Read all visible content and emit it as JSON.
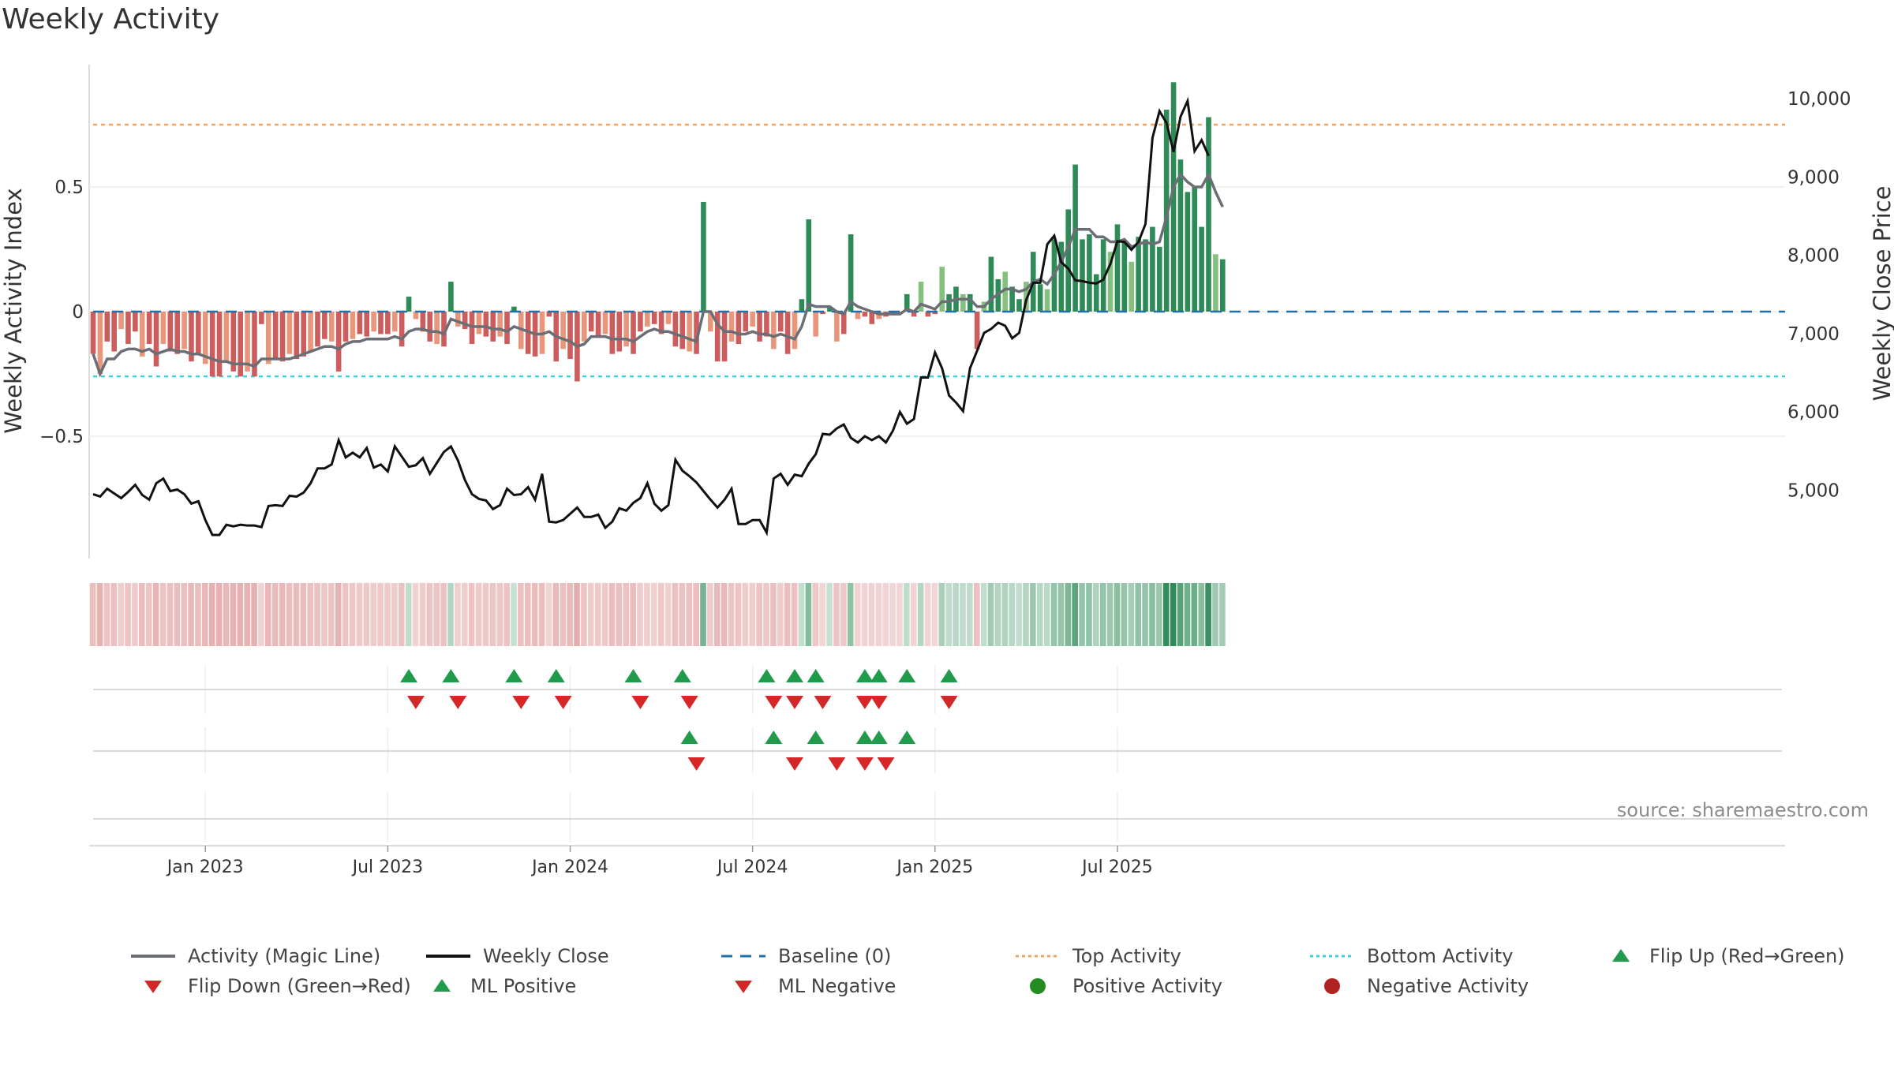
{
  "title": "Weekly Activity",
  "source": "source: sharemaestro.com",
  "chart_data": {
    "type": "bar",
    "title": "Weekly Activity",
    "ylabel_left": "Weekly Activity Index",
    "ylabel_right": "Weekly Close Price",
    "ylim_left": [
      -1.0,
      1.0
    ],
    "ylim_right": [
      4000,
      10500
    ],
    "left_ticks": [
      {
        "v": 0.5,
        "label": "0.5"
      },
      {
        "v": 0,
        "label": "0"
      },
      {
        "v": -0.5,
        "label": "−0.5"
      }
    ],
    "right_ticks": [
      {
        "v": 10000,
        "label": "10,000"
      },
      {
        "v": 9000,
        "label": "9,000"
      },
      {
        "v": 8000,
        "label": "8,000"
      },
      {
        "v": 7000,
        "label": "7,000"
      },
      {
        "v": 6000,
        "label": "6,000"
      },
      {
        "v": 5000,
        "label": "5,000"
      }
    ],
    "x_tick_labels": [
      {
        "week": 16,
        "label": "Jan 2023"
      },
      {
        "week": 42,
        "label": "Jul 2023"
      },
      {
        "week": 68,
        "label": "Jan 2024"
      },
      {
        "week": 94,
        "label": "Jul 2024"
      },
      {
        "week": 120,
        "label": "Jan 2025"
      },
      {
        "week": 146,
        "label": "Jul 2025"
      }
    ],
    "top_activity": 0.75,
    "bottom_activity": -0.26,
    "baseline": 0,
    "activity": [
      -0.17,
      -0.25,
      -0.12,
      -0.16,
      -0.07,
      -0.13,
      -0.08,
      -0.18,
      -0.13,
      -0.22,
      -0.13,
      -0.16,
      -0.17,
      -0.15,
      -0.2,
      -0.17,
      -0.21,
      -0.26,
      -0.26,
      -0.2,
      -0.24,
      -0.26,
      -0.24,
      -0.26,
      -0.05,
      -0.21,
      -0.19,
      -0.2,
      -0.17,
      -0.19,
      -0.18,
      -0.16,
      -0.14,
      -0.11,
      -0.12,
      -0.24,
      -0.12,
      -0.11,
      -0.09,
      -0.1,
      -0.08,
      -0.09,
      -0.09,
      -0.08,
      -0.14,
      0.06,
      -0.03,
      -0.08,
      -0.12,
      -0.13,
      -0.14,
      0.12,
      -0.06,
      -0.07,
      -0.13,
      -0.09,
      -0.1,
      -0.12,
      -0.1,
      -0.13,
      0.02,
      -0.15,
      -0.17,
      -0.18,
      -0.17,
      -0.02,
      -0.2,
      -0.15,
      -0.19,
      -0.28,
      -0.12,
      -0.08,
      -0.1,
      -0.09,
      -0.17,
      -0.16,
      -0.14,
      -0.17,
      -0.08,
      -0.06,
      -0.05,
      -0.09,
      -0.05,
      -0.14,
      -0.15,
      -0.16,
      -0.17,
      0.44,
      -0.08,
      -0.2,
      -0.2,
      -0.12,
      -0.13,
      -0.08,
      -0.06,
      -0.12,
      -0.1,
      -0.15,
      -0.08,
      -0.17,
      -0.15,
      0.05,
      0.37,
      -0.1,
      -0.01,
      0.02,
      -0.12,
      -0.09,
      0.31,
      -0.03,
      -0.02,
      -0.05,
      -0.03,
      -0.02,
      -0.01,
      -0.01,
      0.07,
      -0.02,
      0.12,
      -0.02,
      -0.01,
      0.18,
      0.07,
      0.1,
      0.07,
      0.07,
      -0.15,
      0.04,
      0.22,
      0.13,
      0.16,
      0.1,
      0.05,
      0.12,
      0.24,
      0.11,
      0.09,
      0.29,
      0.28,
      0.41,
      0.59,
      0.29,
      0.31,
      0.15,
      0.29,
      0.24,
      0.35,
      0.28,
      0.2,
      0.3,
      0.29,
      0.34,
      0.26,
      0.81,
      0.92,
      0.61,
      0.48,
      0.5,
      0.34,
      0.78,
      0.23,
      0.21
    ],
    "magic_line": [
      -0.17,
      -0.25,
      -0.19,
      -0.19,
      -0.16,
      -0.15,
      -0.15,
      -0.16,
      -0.15,
      -0.17,
      -0.16,
      -0.15,
      -0.16,
      -0.16,
      -0.17,
      -0.17,
      -0.18,
      -0.19,
      -0.2,
      -0.2,
      -0.21,
      -0.21,
      -0.21,
      -0.22,
      -0.19,
      -0.19,
      -0.19,
      -0.19,
      -0.19,
      -0.18,
      -0.17,
      -0.16,
      -0.15,
      -0.14,
      -0.14,
      -0.15,
      -0.13,
      -0.12,
      -0.12,
      -0.11,
      -0.11,
      -0.11,
      -0.11,
      -0.1,
      -0.11,
      -0.08,
      -0.07,
      -0.07,
      -0.08,
      -0.08,
      -0.09,
      -0.03,
      -0.04,
      -0.05,
      -0.06,
      -0.06,
      -0.06,
      -0.07,
      -0.07,
      -0.08,
      -0.06,
      -0.07,
      -0.08,
      -0.09,
      -0.09,
      -0.08,
      -0.1,
      -0.11,
      -0.12,
      -0.14,
      -0.13,
      -0.1,
      -0.1,
      -0.1,
      -0.11,
      -0.11,
      -0.11,
      -0.12,
      -0.1,
      -0.08,
      -0.07,
      -0.08,
      -0.08,
      -0.09,
      -0.1,
      -0.11,
      -0.12,
      0.0,
      0.0,
      -0.05,
      -0.08,
      -0.08,
      -0.09,
      -0.09,
      -0.08,
      -0.09,
      -0.09,
      -0.1,
      -0.09,
      -0.1,
      -0.11,
      -0.06,
      0.03,
      0.02,
      0.02,
      0.02,
      0.0,
      -0.01,
      0.04,
      0.02,
      0.01,
      0.0,
      -0.01,
      -0.01,
      -0.01,
      -0.01,
      0.01,
      0.0,
      0.03,
      0.02,
      0.01,
      0.04,
      0.04,
      0.05,
      0.05,
      0.05,
      0.02,
      0.02,
      0.05,
      0.07,
      0.09,
      0.09,
      0.08,
      0.09,
      0.12,
      0.13,
      0.11,
      0.15,
      0.2,
      0.26,
      0.33,
      0.33,
      0.33,
      0.3,
      0.3,
      0.28,
      0.28,
      0.29,
      0.26,
      0.27,
      0.28,
      0.27,
      0.28,
      0.38,
      0.5,
      0.55,
      0.52,
      0.5,
      0.5,
      0.55,
      0.48,
      0.42
    ],
    "weekly_close": [
      4950,
      4920,
      5020,
      4960,
      4900,
      4980,
      5070,
      4940,
      4880,
      5090,
      5150,
      4990,
      5010,
      4950,
      4830,
      4860,
      4620,
      4430,
      4430,
      4560,
      4540,
      4560,
      4550,
      4550,
      4530,
      4800,
      4810,
      4800,
      4930,
      4920,
      4970,
      5090,
      5280,
      5280,
      5330,
      5640,
      5420,
      5480,
      5420,
      5540,
      5290,
      5330,
      5240,
      5560,
      5430,
      5300,
      5320,
      5410,
      5210,
      5350,
      5490,
      5560,
      5380,
      5130,
      4950,
      4890,
      4870,
      4760,
      4810,
      5020,
      4940,
      4950,
      5040,
      4880,
      5210,
      4600,
      4590,
      4620,
      4700,
      4780,
      4660,
      4660,
      4690,
      4520,
      4600,
      4770,
      4740,
      4840,
      4900,
      5090,
      4830,
      4740,
      4810,
      5390,
      5250,
      5180,
      5100,
      4990,
      4880,
      4780,
      4880,
      5020,
      4570,
      4570,
      4620,
      4620,
      4460,
      5150,
      5210,
      5070,
      5200,
      5180,
      5340,
      5460,
      5720,
      5710,
      5790,
      5840,
      5670,
      5610,
      5690,
      5640,
      5690,
      5610,
      5760,
      6000,
      5850,
      5910,
      6440,
      6440,
      6760,
      6560,
      6210,
      6120,
      6010,
      6560,
      6780,
      7010,
      7060,
      7140,
      7100,
      6940,
      7010,
      7430,
      7650,
      7650,
      8140,
      8250,
      7910,
      7830,
      7680,
      7670,
      7650,
      7640,
      7690,
      7890,
      8180,
      8170,
      8070,
      8170,
      8400,
      9500,
      9840,
      9690,
      9320,
      9770,
      9970,
      9330,
      9470,
      9270
    ],
    "flip_up": [
      45,
      51,
      60,
      66,
      77,
      84,
      96,
      100,
      103,
      110,
      112,
      116,
      122
    ],
    "flip_down": [
      46,
      52,
      61,
      67,
      78,
      85,
      97,
      100,
      104,
      110,
      112,
      122
    ],
    "ml_positive": [
      85,
      97,
      103,
      110,
      112,
      116
    ],
    "ml_negative": [
      86,
      100,
      106,
      110,
      113
    ]
  },
  "legend": {
    "magic_line": "Activity (Magic Line)",
    "weekly_close": "Weekly Close",
    "baseline": "Baseline (0)",
    "top_activity": "Top Activity",
    "bottom_activity": "Bottom Activity",
    "flip_up": "Flip Up (Red→Green)",
    "flip_down": "Flip Down (Green→Red)",
    "ml_positive": "ML Positive",
    "ml_negative": "ML Negative",
    "positive_activity": "Positive Activity",
    "negative_activity": "Negative Activity"
  },
  "colors": {
    "pos_strong": "#2e8b57",
    "pos_weak": "#86c07e",
    "neg_strong": "#cd5c5c",
    "neg_weak": "#e9967a",
    "magic_line": "#6b6e75",
    "weekly_close": "#111111",
    "baseline": "#1f6fa8",
    "top_activity": "#f4a460",
    "bottom_activity": "#40d0d8",
    "marker_up": "#1f9b4b",
    "marker_down": "#d62728",
    "dot_positive": "#228b22",
    "dot_negative": "#b22222"
  }
}
